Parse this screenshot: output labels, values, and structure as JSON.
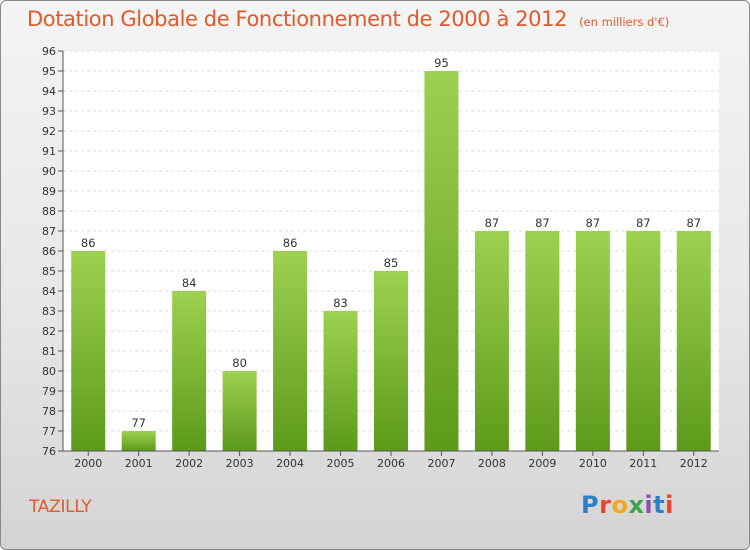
{
  "header": {
    "title": "Dotation Globale de Fonctionnement de 2000 à 2012",
    "unit": "(en milliers d'€)"
  },
  "footer": {
    "commune": "TAZILLY",
    "logo": "Proxiti",
    "logo_colors": [
      "#2e7fc8",
      "#e8452c",
      "#f0a81c",
      "#3da34a",
      "#8a4fb0",
      "#2e7fc8",
      "#e8452c"
    ]
  },
  "chart_data": {
    "type": "bar",
    "categories": [
      "2000",
      "2001",
      "2002",
      "2003",
      "2004",
      "2005",
      "2006",
      "2007",
      "2008",
      "2009",
      "2010",
      "2011",
      "2012"
    ],
    "values": [
      86,
      77,
      84,
      80,
      86,
      83,
      85,
      95,
      87,
      87,
      87,
      87,
      87
    ],
    "ylim": [
      76,
      96
    ],
    "yticks": [
      76,
      77,
      78,
      79,
      80,
      81,
      82,
      83,
      84,
      85,
      86,
      87,
      88,
      89,
      90,
      91,
      92,
      93,
      94,
      95,
      96
    ],
    "grid": true,
    "bar_color_top": "#9dd150",
    "bar_color_bottom": "#5d9a1a"
  }
}
